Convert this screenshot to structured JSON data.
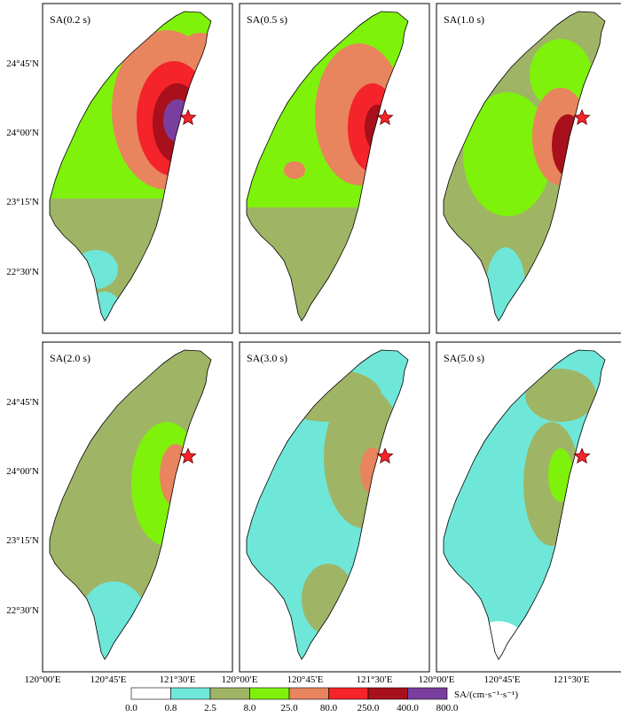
{
  "panels": [
    {
      "title": "SA(0.2 s)"
    },
    {
      "title": "SA(0.5 s)"
    },
    {
      "title": "SA(1.0 s)"
    },
    {
      "title": "SA(2.0 s)"
    },
    {
      "title": "SA(3.0 s)"
    },
    {
      "title": "SA(5.0 s)"
    }
  ],
  "lat_ticks": [
    "24°45′N",
    "24°00′N",
    "23°15′N",
    "22°30′N"
  ],
  "lon_ticks": [
    "120°00′E",
    "120°45′E",
    "121°30′E"
  ],
  "colorbar": {
    "title": "SA/(cm·s⁻¹·s⁻¹)",
    "labels": [
      "0.0",
      "0.8",
      "2.5",
      "8.0",
      "25.0",
      "80.0",
      "250.0",
      "400.0",
      "800.0"
    ],
    "colors": [
      "#ffffff",
      "#6ee7d9",
      "#9fb565",
      "#7ef20a",
      "#e8845e",
      "#f5232a",
      "#a8101c",
      "#7a3f9e"
    ]
  },
  "epicenter_symbol": "star-icon"
}
